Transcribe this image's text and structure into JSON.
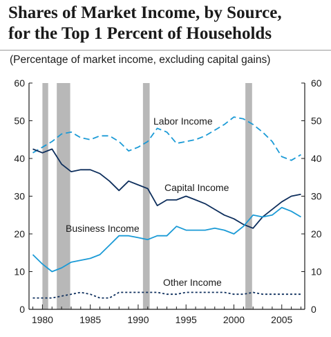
{
  "title_line1": "Shares of Market Income, by Source,",
  "title_line2": "for the Top 1 Percent of Households",
  "subtitle": "(Percentage of market income, excluding capital gains)",
  "chart_data": {
    "type": "line",
    "title": "Shares of Market Income, by Source, for the Top 1 Percent of Households",
    "subtitle": "(Percentage of market income, excluding capital gains)",
    "xlabel": "",
    "ylabel": "",
    "xlim": [
      1978.6,
      2007.4
    ],
    "ylim": [
      0,
      60
    ],
    "xticks": [
      1980,
      1985,
      1990,
      1995,
      2000,
      2005
    ],
    "yticks": [
      0,
      10,
      20,
      30,
      40,
      50,
      60
    ],
    "grid": false,
    "legend": "inline labels",
    "recession_bands": [
      [
        1980.0,
        1980.6
      ],
      [
        1981.5,
        1982.9
      ],
      [
        1990.5,
        1991.2
      ],
      [
        2001.2,
        2001.9
      ]
    ],
    "x": [
      1979,
      1980,
      1981,
      1982,
      1983,
      1984,
      1985,
      1986,
      1987,
      1988,
      1989,
      1990,
      1991,
      1992,
      1993,
      1994,
      1995,
      1996,
      1997,
      1998,
      1999,
      2000,
      2001,
      2002,
      2003,
      2004,
      2005,
      2006,
      2007
    ],
    "series": [
      {
        "name": "Labor Income",
        "style": "dashed",
        "color": "#1a9ad6",
        "values": [
          41.5,
          43,
          44.5,
          46.5,
          47,
          45.5,
          45,
          46,
          46,
          44.5,
          42,
          43,
          44.5,
          48,
          47,
          44,
          44.5,
          45,
          46,
          47.5,
          49,
          51,
          50.5,
          49,
          47,
          44.5,
          40.5,
          39.5,
          41
        ]
      },
      {
        "name": "Capital Income",
        "style": "solid",
        "color": "#0d2e5c",
        "values": [
          42.5,
          41.5,
          42.5,
          38.5,
          36.5,
          37,
          37,
          36,
          34,
          31.5,
          34,
          33,
          32,
          27.5,
          29,
          29,
          30,
          29,
          28,
          26.5,
          25,
          24,
          22.5,
          21.5,
          24.5,
          26.5,
          28.5,
          30,
          30.5
        ]
      },
      {
        "name": "Business Income",
        "style": "solid",
        "color": "#1a9ad6",
        "values": [
          14.5,
          12,
          10,
          11,
          12.5,
          13,
          13.5,
          14.5,
          17,
          19.5,
          19.5,
          19,
          18.5,
          19.5,
          19.5,
          22,
          21,
          21,
          21,
          21.5,
          21,
          20,
          22,
          25,
          24.5,
          25,
          27,
          26,
          24.5
        ]
      },
      {
        "name": "Other Income",
        "style": "dotted",
        "color": "#0d2e5c",
        "values": [
          3,
          3,
          3,
          3.5,
          4,
          4.5,
          4,
          3,
          3,
          4.5,
          4.5,
          4.5,
          4.5,
          4.5,
          4,
          4,
          4.5,
          4.5,
          4.5,
          4.5,
          4.5,
          4,
          4,
          4.5,
          4,
          4,
          4,
          4,
          4
        ]
      }
    ],
    "series_labels": [
      "Labor Income",
      "Capital Income",
      "Business Income",
      "Other Income"
    ]
  }
}
